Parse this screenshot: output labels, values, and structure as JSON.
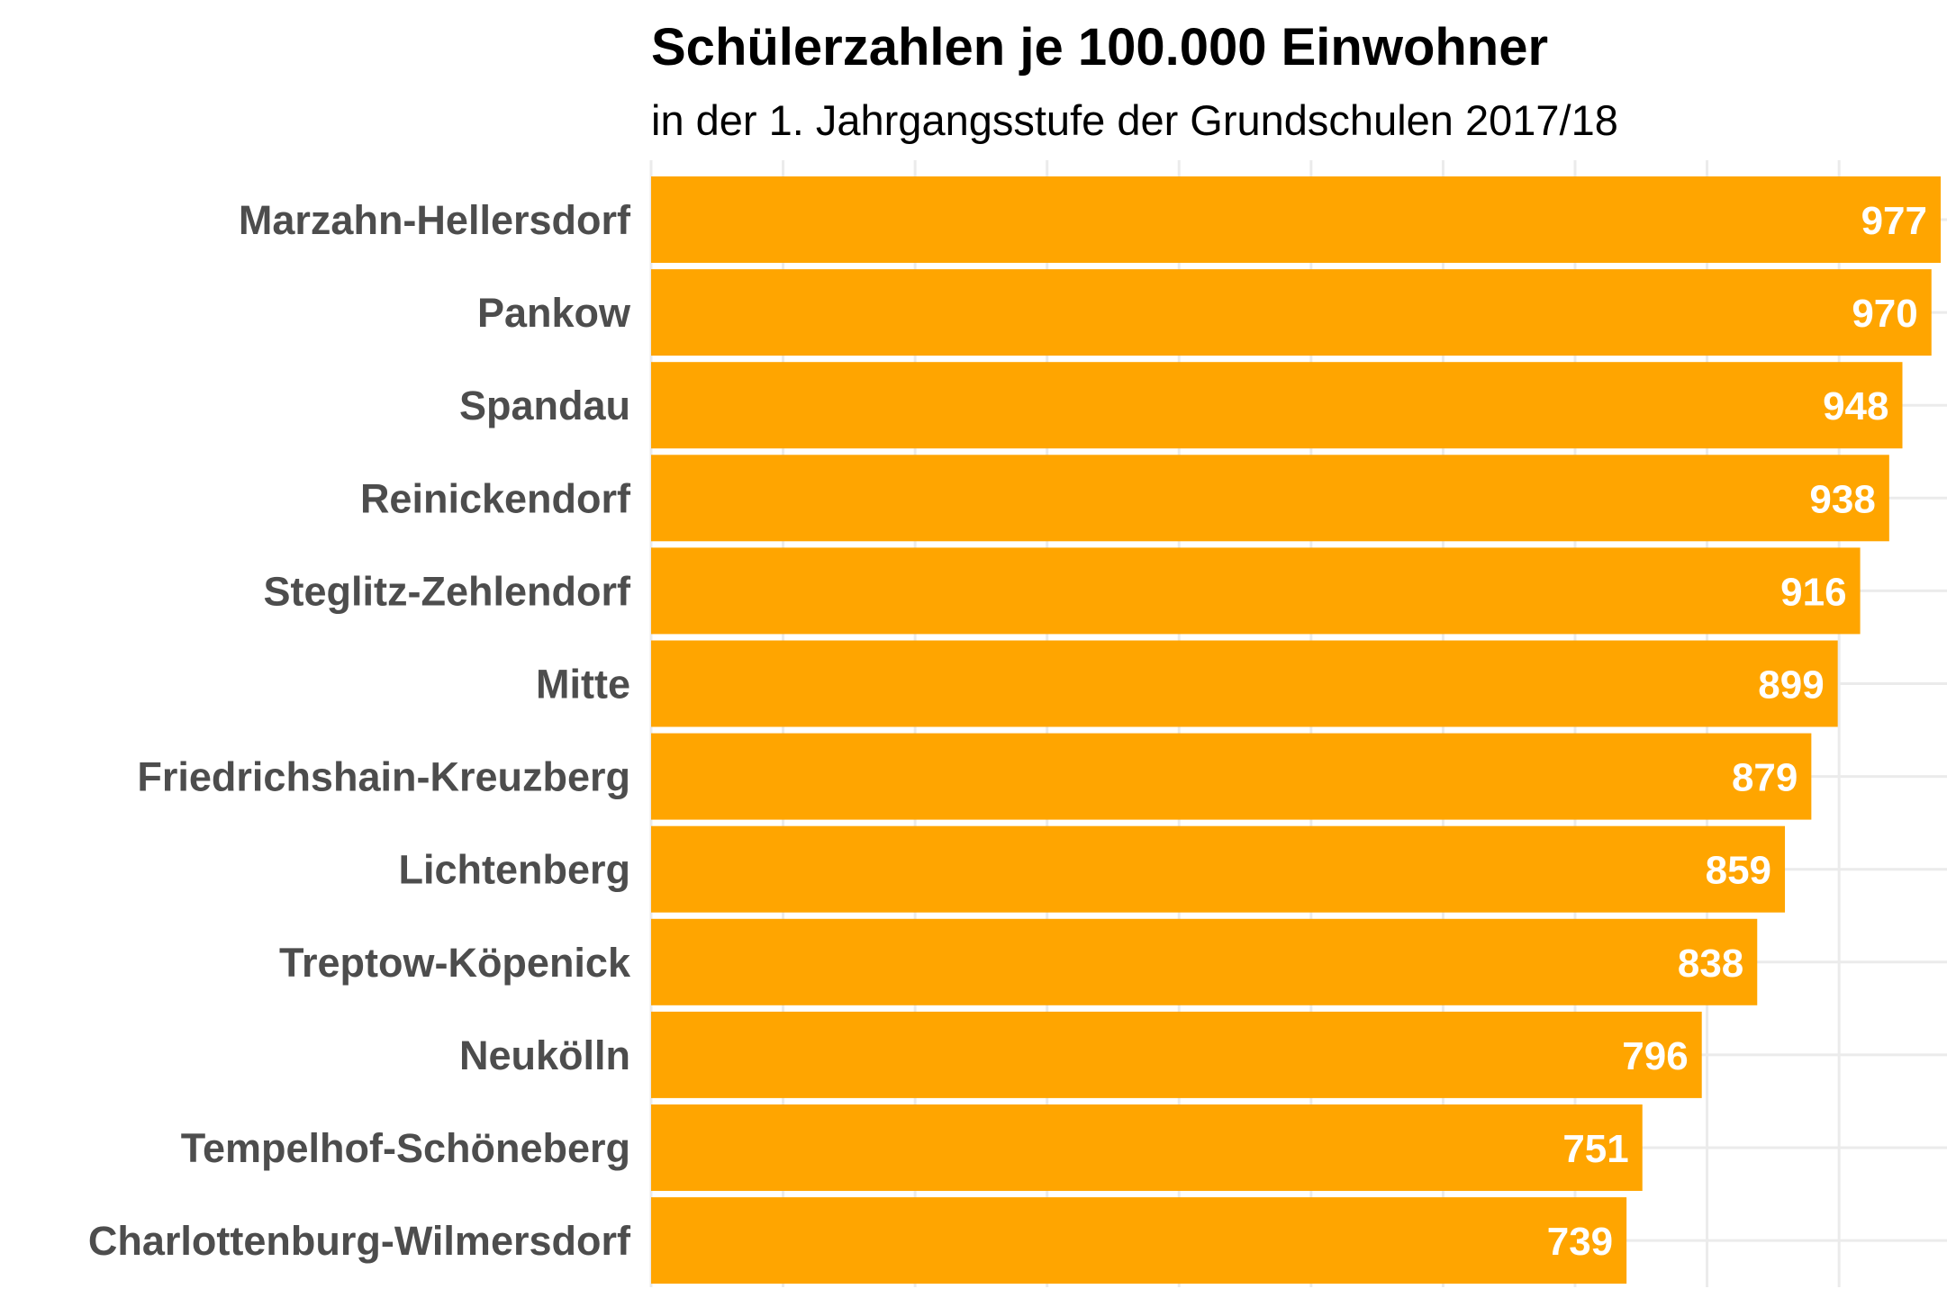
{
  "chart_data": {
    "type": "bar",
    "orientation": "horizontal",
    "title": "Schülerzahlen je 100.000 Einwohner",
    "subtitle": "in der 1. Jahrgangsstufe der Grundschulen 2017/18",
    "categories": [
      "Marzahn-Hellersdorf",
      "Pankow",
      "Spandau",
      "Reinickendorf",
      "Steglitz-Zehlendorf",
      "Mitte",
      "Friedrichshain-Kreuzberg",
      "Lichtenberg",
      "Treptow-Köpenick",
      "Neukölln",
      "Tempelhof-Schöneberg",
      "Charlottenburg-Wilmersdorf"
    ],
    "values": [
      977,
      970,
      948,
      938,
      916,
      899,
      879,
      859,
      838,
      796,
      751,
      739
    ],
    "xlim": [
      0,
      1000
    ],
    "grid": true,
    "xticks_shown": false,
    "bar_color": "#ffa500",
    "value_label_color": "#ffffff"
  }
}
